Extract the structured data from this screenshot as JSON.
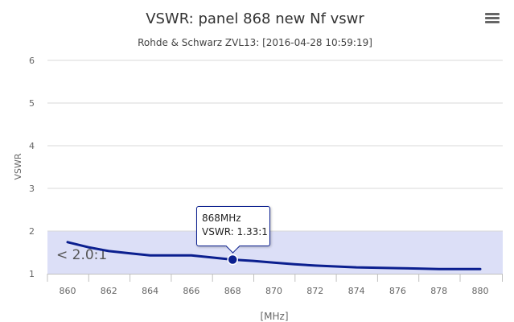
{
  "chart_data": {
    "type": "line",
    "title": "VSWR: panel 868 new Nf vswr",
    "subtitle": "Rohde & Schwarz ZVL13: [2016-04-28 10:59:19]",
    "xlabel": "[MHz]",
    "ylabel": "VSWR",
    "xlim": [
      859.2,
      880.8
    ],
    "ylim": [
      1,
      6
    ],
    "x_ticks": [
      860,
      862,
      864,
      866,
      868,
      870,
      872,
      874,
      876,
      878,
      880
    ],
    "y_ticks": [
      1,
      2,
      3,
      4,
      5,
      6
    ],
    "grid": "horizontal",
    "band": {
      "from": 1,
      "to": 2,
      "label": "< 2.0:1",
      "color": "#dcdff7"
    },
    "series": [
      {
        "color": "#0b1f8f",
        "x": [
          860,
          861,
          862,
          863,
          864,
          865,
          866,
          867,
          868,
          869,
          870,
          871,
          872,
          873,
          874,
          875,
          876,
          877,
          878,
          879,
          880
        ],
        "y": [
          1.74,
          1.62,
          1.53,
          1.48,
          1.43,
          1.43,
          1.43,
          1.38,
          1.33,
          1.3,
          1.26,
          1.22,
          1.19,
          1.17,
          1.15,
          1.14,
          1.13,
          1.12,
          1.11,
          1.11,
          1.11
        ]
      }
    ],
    "tooltip": {
      "line1": "868MHz",
      "line2": "VSWR: 1.33:1",
      "point_x": 868,
      "point_y": 1.33
    }
  },
  "ui": {
    "menu_icon": "hamburger-menu-icon"
  }
}
